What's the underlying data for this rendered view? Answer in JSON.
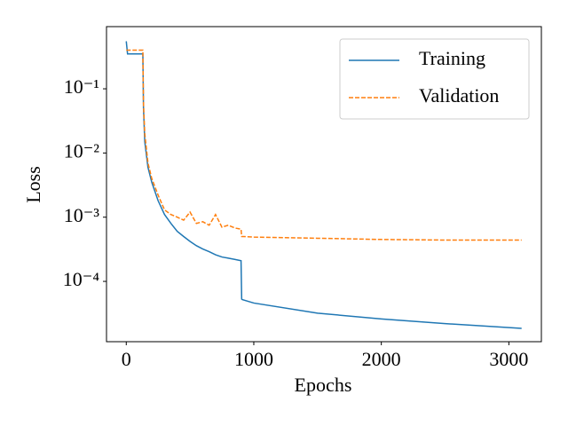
{
  "chart_data": {
    "type": "line",
    "xlabel": "Epochs",
    "ylabel": "Loss",
    "x": [
      0,
      10,
      130,
      135,
      145,
      170,
      200,
      250,
      300,
      350,
      400,
      450,
      500,
      550,
      600,
      650,
      700,
      750,
      800,
      850,
      900,
      905,
      910,
      1000,
      1500,
      2000,
      2500,
      3100
    ],
    "series": [
      {
        "name": "Training",
        "color": "#1f77b4",
        "linestyle": "solid",
        "values": [
          0.55,
          0.35,
          0.35,
          0.05,
          0.015,
          0.006,
          0.0035,
          0.0018,
          0.0011,
          0.0008,
          0.0006,
          0.0005,
          0.00042,
          0.00036,
          0.00032,
          0.00029,
          0.00026,
          0.00024,
          0.00023,
          0.00022,
          0.00021,
          5.3e-05,
          5.2e-05,
          4.6e-05,
          3.2e-05,
          2.6e-05,
          2.2e-05,
          1.85e-05
        ]
      },
      {
        "name": "Validation",
        "color": "#ff7f0e",
        "linestyle": "dashed",
        "values": [
          0.4,
          0.4,
          0.4,
          0.06,
          0.02,
          0.007,
          0.004,
          0.0022,
          0.0013,
          0.0011,
          0.001,
          0.0009,
          0.0012,
          0.0008,
          0.00085,
          0.00075,
          0.0011,
          0.0007,
          0.00075,
          0.00068,
          0.00065,
          0.0005,
          0.0005,
          0.00049,
          0.00047,
          0.00045,
          0.00044,
          0.00044
        ]
      }
    ],
    "xlim": [
      -155,
      3255
    ],
    "xticks": [
      0,
      1000,
      2000,
      3000
    ],
    "ylim": [
      1.15e-05,
      0.93
    ],
    "yscale": "log",
    "yticks": [
      {
        "value": 0.1,
        "label": "10⁻¹"
      },
      {
        "value": 0.01,
        "label": "10⁻²"
      },
      {
        "value": 0.001,
        "label": "10⁻³"
      },
      {
        "value": 0.0001,
        "label": "10⁻⁴"
      }
    ],
    "legend": "upper right"
  }
}
